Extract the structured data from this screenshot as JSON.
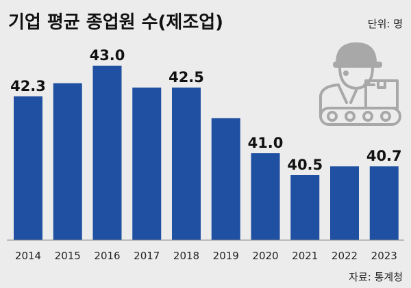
{
  "chart_data": {
    "type": "bar",
    "title": "기업 평균 종업원 수(제조업)",
    "unit_label": "단위: 명",
    "source_label": "자료: 통계청",
    "categories": [
      "2014",
      "2015",
      "2016",
      "2017",
      "2018",
      "2019",
      "2020",
      "2021",
      "2022",
      "2023"
    ],
    "values": [
      42.3,
      42.6,
      43.0,
      42.5,
      42.5,
      41.8,
      41.0,
      40.5,
      40.7,
      40.7
    ],
    "data_labels": [
      "42.3",
      "",
      "43.0",
      "",
      "42.5",
      "",
      "41.0",
      "40.5",
      "",
      "40.7"
    ],
    "bar_color": "#1f50a1",
    "background_color": "#ececec",
    "icon": "factory-worker-conveyor-icon"
  }
}
